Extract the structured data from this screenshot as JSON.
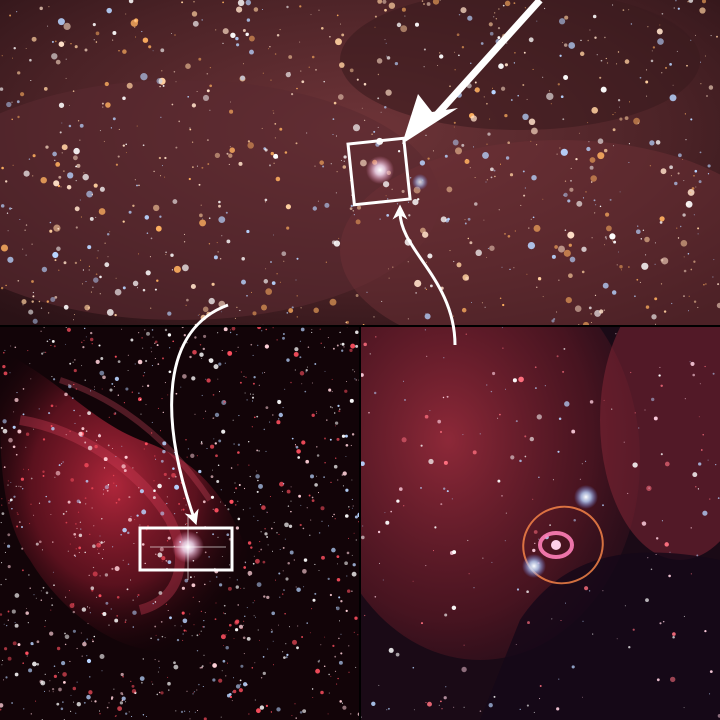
{
  "composite": {
    "panels": [
      {
        "id": "top-wide-field",
        "description_visible": false
      },
      {
        "id": "bottom-left-nebula",
        "description_visible": false
      },
      {
        "id": "bottom-right-rings",
        "description_visible": false
      }
    ],
    "annotation_color": "#ffffff",
    "colors": {
      "background": "#0a0508",
      "nebula_red": "#c8283c",
      "nebula_dusty": "#7a3a3e",
      "star_white": "#ffffff",
      "star_blue": "#b8d4ff",
      "star_orange": "#ffb060",
      "ring_pink": "#ff7fb8",
      "ring_orange": "#ff8a4a"
    },
    "icons": [
      "arrow-icon",
      "highlight-box",
      "curved-arrow-icon"
    ]
  }
}
